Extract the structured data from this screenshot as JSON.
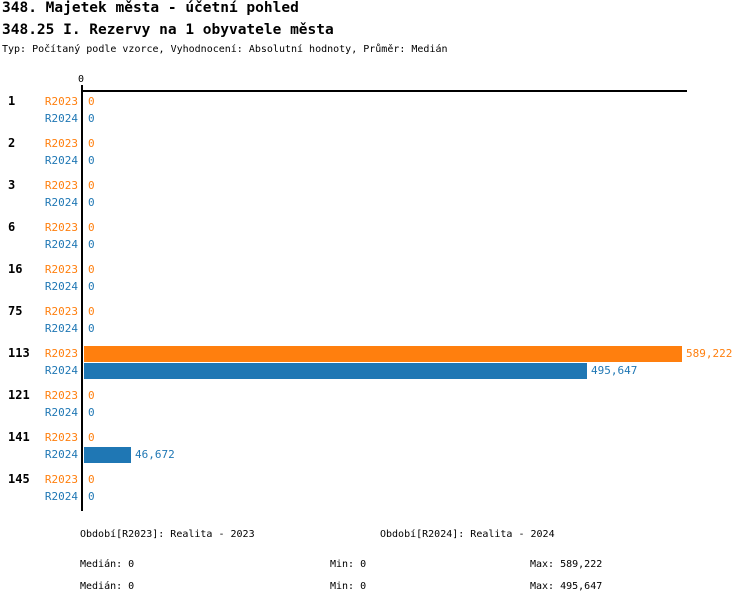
{
  "header": {
    "title_line1": "348. Majetek města - účetní pohled",
    "title_line2": "348.25 I. Rezervy na 1 obyvatele města",
    "meta_line": "Typ: Počítaný podle vzorce, Vyhodnocení: Absolutní hodnoty, Průměr: Medián"
  },
  "colors": {
    "r2023": "#ff7f0e",
    "r2024": "#1f77b4",
    "axis": "#000000",
    "category_text": "#000000"
  },
  "chart_data": {
    "type": "bar",
    "orientation": "horizontal",
    "title": "348.25 I. Rezervy na 1 obyvatele města",
    "categories": [
      "1",
      "2",
      "3",
      "6",
      "16",
      "75",
      "113",
      "121",
      "141",
      "145"
    ],
    "series": [
      {
        "name": "R2023",
        "color": "#ff7f0e",
        "values": [
          0,
          0,
          0,
          0,
          0,
          0,
          589222,
          0,
          0,
          0
        ],
        "value_labels": [
          "0",
          "0",
          "0",
          "0",
          "0",
          "0",
          "589,222",
          "0",
          "0",
          "0"
        ]
      },
      {
        "name": "R2024",
        "color": "#1f77b4",
        "values": [
          0,
          0,
          0,
          0,
          0,
          0,
          495647,
          0,
          46672,
          0
        ],
        "value_labels": [
          "0",
          "0",
          "0",
          "0",
          "0",
          "0",
          "495,647",
          "0",
          "46,672",
          "0"
        ]
      }
    ],
    "xlim": [
      0,
      596000
    ],
    "x_tick_labels": [
      "0"
    ],
    "grid": false,
    "legend_position": "bottom"
  },
  "axis": {
    "zero_tick_label": "0"
  },
  "legend": {
    "r2023_label": "Období[R2023]: Realita - 2023",
    "r2024_label": "Období[R2024]: Realita - 2024",
    "r2023_median": "Medián: 0",
    "r2023_min": "Min: 0",
    "r2023_max": "Max: 589,222",
    "r2024_median": "Medián: 0",
    "r2024_min": "Min: 0",
    "r2024_max": "Max: 495,647"
  }
}
